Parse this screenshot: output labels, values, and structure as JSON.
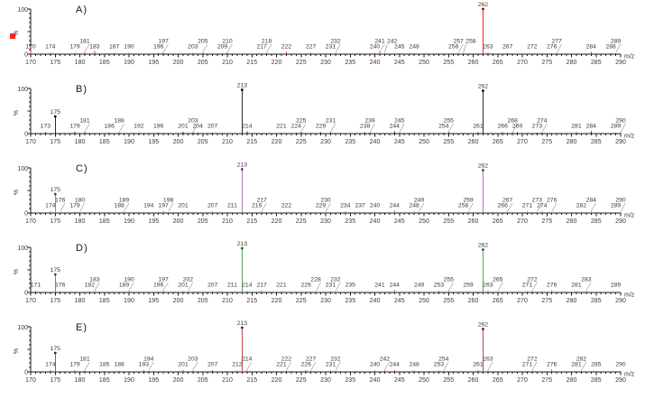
{
  "figure": {
    "background": "#ffffff",
    "axis_color": "#1a1a1a",
    "text_color": "#3a3a3a",
    "selection_color": "#ff2020"
  },
  "axes": {
    "xlabel": "m/z",
    "ylabel": "%",
    "y_top_label": "100",
    "y_bottom_label": "0",
    "xlim": [
      170,
      290
    ],
    "ylim": [
      0,
      100
    ],
    "x_major_tick": 5,
    "x_minor_tick": 1,
    "grid": false
  },
  "chart_data": [
    {
      "type": "bar",
      "panel": "A)",
      "color": "#ff2424",
      "marker_color": "#a00000",
      "selected": true,
      "peaks": [
        [
          170,
          9
        ],
        [
          174,
          3
        ],
        [
          179,
          3
        ],
        [
          181,
          5
        ],
        [
          183,
          7
        ],
        [
          187,
          2
        ],
        [
          190,
          3
        ],
        [
          196,
          3
        ],
        [
          197,
          4
        ],
        [
          203,
          3
        ],
        [
          205,
          4
        ],
        [
          209,
          2
        ],
        [
          210,
          4
        ],
        [
          217,
          2
        ],
        [
          218,
          3
        ],
        [
          222,
          5
        ],
        [
          227,
          3
        ],
        [
          231,
          2
        ],
        [
          232,
          2
        ],
        [
          240,
          3
        ],
        [
          241,
          6
        ],
        [
          242,
          2
        ],
        [
          245,
          2
        ],
        [
          248,
          2
        ],
        [
          256,
          2
        ],
        [
          257,
          3
        ],
        [
          258,
          2
        ],
        [
          262,
          100
        ],
        [
          263,
          4
        ],
        [
          267,
          3
        ],
        [
          272,
          2
        ],
        [
          276,
          2
        ],
        [
          277,
          2
        ],
        [
          284,
          5
        ],
        [
          288,
          2
        ],
        [
          289,
          2
        ]
      ]
    },
    {
      "type": "bar",
      "panel": "B)",
      "color": "#2a2a2a",
      "marker_color": "#000000",
      "selected": false,
      "peaks": [
        [
          173,
          3
        ],
        [
          175,
          38
        ],
        [
          179,
          4
        ],
        [
          181,
          3
        ],
        [
          186,
          2
        ],
        [
          188,
          2
        ],
        [
          192,
          2
        ],
        [
          196,
          2
        ],
        [
          201,
          4
        ],
        [
          203,
          3
        ],
        [
          204,
          2
        ],
        [
          207,
          2
        ],
        [
          213,
          97
        ],
        [
          214,
          5
        ],
        [
          221,
          2
        ],
        [
          224,
          2
        ],
        [
          225,
          4
        ],
        [
          229,
          3
        ],
        [
          231,
          3
        ],
        [
          238,
          3
        ],
        [
          239,
          2
        ],
        [
          244,
          5
        ],
        [
          245,
          2
        ],
        [
          254,
          2
        ],
        [
          255,
          3
        ],
        [
          261,
          3
        ],
        [
          262,
          95
        ],
        [
          266,
          3
        ],
        [
          268,
          2
        ],
        [
          269,
          3
        ],
        [
          273,
          2
        ],
        [
          274,
          2
        ],
        [
          281,
          3
        ],
        [
          284,
          5
        ],
        [
          289,
          2
        ],
        [
          290,
          2
        ]
      ]
    },
    {
      "type": "bar",
      "panel": "C)",
      "color": "#b472c4",
      "marker_color": "#64276e",
      "selected": false,
      "peaks": [
        [
          174,
          4
        ],
        [
          175,
          42
        ],
        [
          176,
          2
        ],
        [
          179,
          3
        ],
        [
          180,
          2
        ],
        [
          188,
          2
        ],
        [
          189,
          3
        ],
        [
          194,
          2
        ],
        [
          197,
          5
        ],
        [
          198,
          2
        ],
        [
          201,
          2
        ],
        [
          207,
          4
        ],
        [
          211,
          2
        ],
        [
          213,
          97
        ],
        [
          216,
          2
        ],
        [
          217,
          4
        ],
        [
          222,
          3
        ],
        [
          229,
          2
        ],
        [
          230,
          2
        ],
        [
          234,
          4
        ],
        [
          237,
          2
        ],
        [
          240,
          2
        ],
        [
          244,
          6
        ],
        [
          248,
          4
        ],
        [
          249,
          2
        ],
        [
          258,
          2
        ],
        [
          259,
          2
        ],
        [
          262,
          95
        ],
        [
          266,
          2
        ],
        [
          267,
          3
        ],
        [
          271,
          4
        ],
        [
          273,
          2
        ],
        [
          274,
          4
        ],
        [
          276,
          2
        ],
        [
          282,
          3
        ],
        [
          284,
          4
        ],
        [
          289,
          2
        ],
        [
          290,
          2
        ]
      ]
    },
    {
      "type": "bar",
      "panel": "D)",
      "color": "#55a455",
      "marker_color": "#1e641e",
      "selected": false,
      "peaks": [
        [
          171,
          4
        ],
        [
          175,
          40
        ],
        [
          176,
          3
        ],
        [
          182,
          2
        ],
        [
          183,
          3
        ],
        [
          189,
          2
        ],
        [
          190,
          4
        ],
        [
          196,
          2
        ],
        [
          197,
          5
        ],
        [
          201,
          3
        ],
        [
          202,
          2
        ],
        [
          207,
          3
        ],
        [
          211,
          2
        ],
        [
          213,
          98
        ],
        [
          214,
          4
        ],
        [
          217,
          5
        ],
        [
          221,
          3
        ],
        [
          226,
          2
        ],
        [
          228,
          2
        ],
        [
          231,
          3
        ],
        [
          232,
          2
        ],
        [
          235,
          2
        ],
        [
          241,
          2
        ],
        [
          244,
          6
        ],
        [
          249,
          3
        ],
        [
          253,
          4
        ],
        [
          255,
          3
        ],
        [
          259,
          3
        ],
        [
          262,
          95
        ],
        [
          263,
          4
        ],
        [
          265,
          2
        ],
        [
          271,
          3
        ],
        [
          272,
          4
        ],
        [
          276,
          5
        ],
        [
          281,
          3
        ],
        [
          283,
          4
        ],
        [
          289,
          2
        ]
      ]
    },
    {
      "type": "bar",
      "panel": "E)",
      "color": "#c04848",
      "marker_color": "#601414",
      "selected": false,
      "peaks": [
        [
          174,
          4
        ],
        [
          175,
          42
        ],
        [
          179,
          4
        ],
        [
          181,
          3
        ],
        [
          185,
          2
        ],
        [
          188,
          2
        ],
        [
          193,
          4
        ],
        [
          194,
          2
        ],
        [
          201,
          4
        ],
        [
          203,
          3
        ],
        [
          207,
          4
        ],
        [
          212,
          3
        ],
        [
          213,
          98
        ],
        [
          214,
          4
        ],
        [
          221,
          2
        ],
        [
          222,
          3
        ],
        [
          226,
          4
        ],
        [
          227,
          2
        ],
        [
          231,
          3
        ],
        [
          232,
          2
        ],
        [
          240,
          3
        ],
        [
          242,
          4
        ],
        [
          244,
          4
        ],
        [
          248,
          3
        ],
        [
          253,
          3
        ],
        [
          254,
          2
        ],
        [
          261,
          4
        ],
        [
          262,
          95
        ],
        [
          263,
          3
        ],
        [
          271,
          2
        ],
        [
          272,
          3
        ],
        [
          276,
          5
        ],
        [
          281,
          2
        ],
        [
          282,
          2
        ],
        [
          285,
          2
        ],
        [
          290,
          2
        ]
      ]
    }
  ]
}
